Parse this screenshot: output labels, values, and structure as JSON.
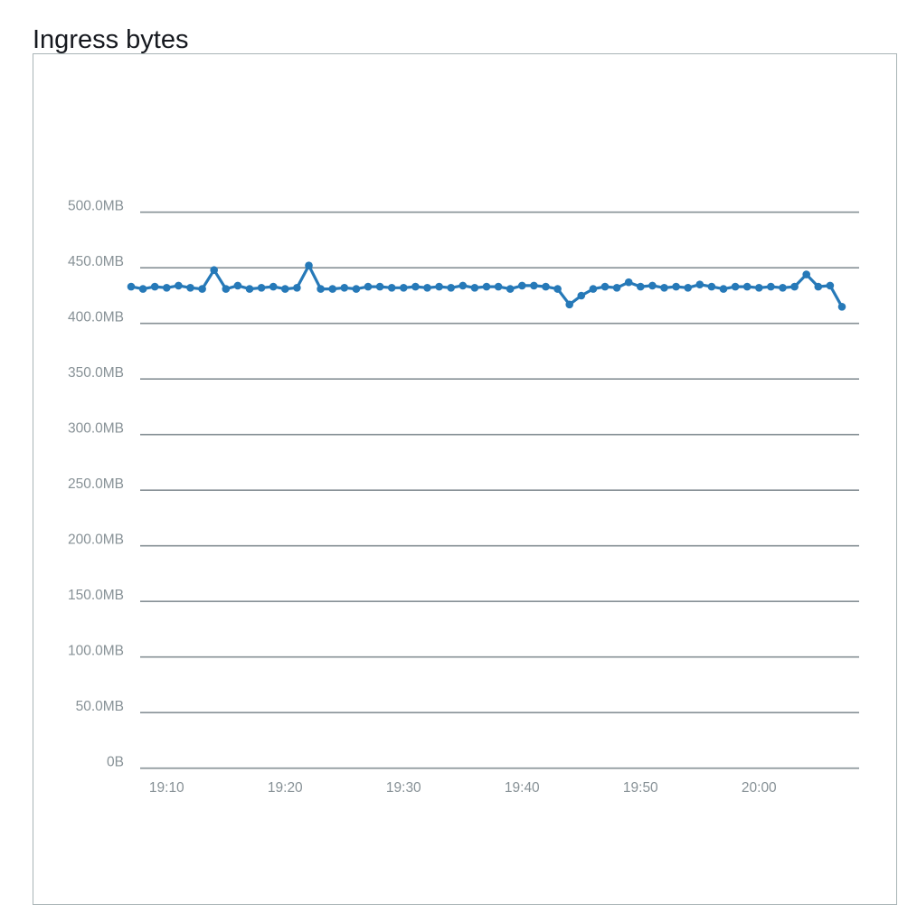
{
  "page_title": "Ingress bytes",
  "chart_data": {
    "type": "line",
    "title": "Ingress bytes",
    "series_name": "Ingress bytes",
    "y_unit": "bytes",
    "legend": "none",
    "grid": true,
    "ylim_mb": [
      0,
      500
    ],
    "y_ticks": [
      {
        "value": 500,
        "label": "500.0MB"
      },
      {
        "value": 450,
        "label": "450.0MB"
      },
      {
        "value": 400,
        "label": "400.0MB"
      },
      {
        "value": 350,
        "label": "350.0MB"
      },
      {
        "value": 300,
        "label": "300.0MB"
      },
      {
        "value": 250,
        "label": "250.0MB"
      },
      {
        "value": 200,
        "label": "200.0MB"
      },
      {
        "value": 150,
        "label": "150.0MB"
      },
      {
        "value": 100,
        "label": "100.0MB"
      },
      {
        "value": 50,
        "label": "50.0MB"
      },
      {
        "value": 0,
        "label": "0B"
      }
    ],
    "x_ticks": [
      "19:10",
      "19:20",
      "19:30",
      "19:40",
      "19:50",
      "20:00"
    ],
    "x": [
      "19:07",
      "19:08",
      "19:09",
      "19:10",
      "19:11",
      "19:12",
      "19:13",
      "19:14",
      "19:15",
      "19:16",
      "19:17",
      "19:18",
      "19:19",
      "19:20",
      "19:21",
      "19:22",
      "19:23",
      "19:24",
      "19:25",
      "19:26",
      "19:27",
      "19:28",
      "19:29",
      "19:30",
      "19:31",
      "19:32",
      "19:33",
      "19:34",
      "19:35",
      "19:36",
      "19:37",
      "19:38",
      "19:39",
      "19:40",
      "19:41",
      "19:42",
      "19:43",
      "19:44",
      "19:45",
      "19:46",
      "19:47",
      "19:48",
      "19:49",
      "19:50",
      "19:51",
      "19:52",
      "19:53",
      "19:54",
      "19:55",
      "19:56",
      "19:57",
      "19:58",
      "19:59",
      "20:00",
      "20:01",
      "20:02",
      "20:03",
      "20:04",
      "20:05",
      "20:06",
      "20:07"
    ],
    "values_mb": [
      433,
      431,
      433,
      432,
      434,
      432,
      431,
      448,
      431,
      434,
      431,
      432,
      433,
      431,
      432,
      452,
      431,
      431,
      432,
      431,
      433,
      433,
      432,
      432,
      433,
      432,
      433,
      432,
      434,
      432,
      433,
      433,
      431,
      434,
      434,
      433,
      431,
      417,
      425,
      431,
      433,
      432,
      437,
      433,
      434,
      432,
      433,
      432,
      435,
      433,
      431,
      433,
      433,
      432,
      433,
      432,
      433,
      444,
      433,
      434,
      415
    ],
    "colors": {
      "line": "#2679b8",
      "grid": "#879196",
      "tick_text": "#879196",
      "title": "#16191f",
      "panel_border": "#a9b4b6",
      "background": "#ffffff"
    }
  }
}
